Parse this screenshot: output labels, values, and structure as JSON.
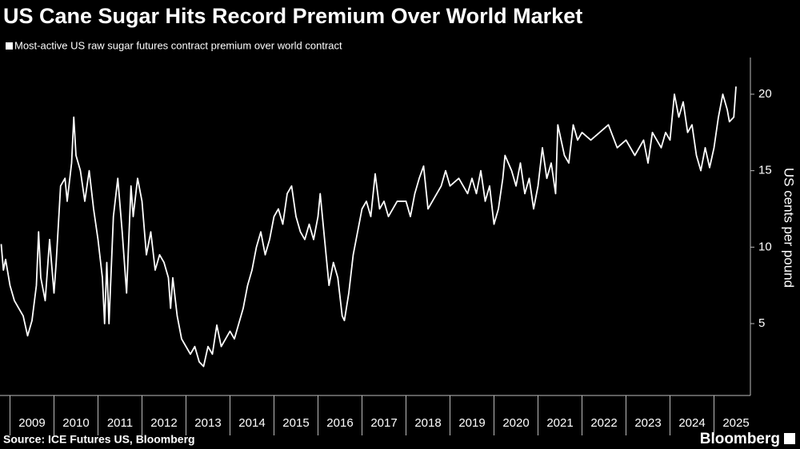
{
  "chart_data": {
    "type": "line",
    "title": "US Cane Sugar Hits Record Premium Over World Market",
    "ylabel": "US cents per pound",
    "source": "Source: ICE Futures US, Bloomberg",
    "brand": "Bloomberg",
    "grid": false,
    "legend": "top-left",
    "xlim": [
      2008.773,
      2025.827
    ],
    "xticks": [
      2009,
      2010,
      2011,
      2012,
      2013,
      2014,
      2015,
      2016,
      2017,
      2018,
      2019,
      2020,
      2021,
      2022,
      2023,
      2024,
      2025
    ],
    "ylim": [
      0.3,
      22.4
    ],
    "yticks": [
      5,
      10,
      15,
      20
    ],
    "x": [
      2008.8,
      2008.85,
      2008.9,
      2009.0,
      2009.1,
      2009.2,
      2009.3,
      2009.4,
      2009.5,
      2009.6,
      2009.65,
      2009.7,
      2009.8,
      2009.9,
      2010.0,
      2010.05,
      2010.15,
      2010.25,
      2010.3,
      2010.4,
      2010.45,
      2010.5,
      2010.6,
      2010.7,
      2010.8,
      2010.9,
      2011.0,
      2011.1,
      2011.15,
      2011.2,
      2011.25,
      2011.35,
      2011.45,
      2011.55,
      2011.65,
      2011.75,
      2011.8,
      2011.9,
      2012.0,
      2012.1,
      2012.2,
      2012.3,
      2012.4,
      2012.5,
      2012.6,
      2012.65,
      2012.7,
      2012.8,
      2012.9,
      2013.0,
      2013.1,
      2013.2,
      2013.3,
      2013.4,
      2013.5,
      2013.6,
      2013.7,
      2013.8,
      2013.9,
      2014.0,
      2014.1,
      2014.2,
      2014.3,
      2014.4,
      2014.5,
      2014.6,
      2014.7,
      2014.8,
      2014.9,
      2015.0,
      2015.1,
      2015.2,
      2015.3,
      2015.4,
      2015.5,
      2015.6,
      2015.7,
      2015.8,
      2015.9,
      2016.0,
      2016.05,
      2016.15,
      2016.25,
      2016.35,
      2016.45,
      2016.55,
      2016.6,
      2016.7,
      2016.8,
      2016.9,
      2017.0,
      2017.1,
      2017.2,
      2017.3,
      2017.4,
      2017.5,
      2017.6,
      2017.8,
      2018.0,
      2018.1,
      2018.2,
      2018.3,
      2018.4,
      2018.5,
      2018.6,
      2018.8,
      2018.9,
      2019.0,
      2019.2,
      2019.4,
      2019.5,
      2019.6,
      2019.7,
      2019.8,
      2019.9,
      2020.0,
      2020.1,
      2020.2,
      2020.25,
      2020.4,
      2020.5,
      2020.6,
      2020.7,
      2020.8,
      2020.9,
      2021.0,
      2021.1,
      2021.2,
      2021.3,
      2021.4,
      2021.45,
      2021.6,
      2021.7,
      2021.8,
      2021.9,
      2022.0,
      2022.2,
      2022.4,
      2022.6,
      2022.8,
      2023.0,
      2023.2,
      2023.4,
      2023.5,
      2023.6,
      2023.8,
      2023.9,
      2024.0,
      2024.1,
      2024.2,
      2024.3,
      2024.4,
      2024.5,
      2024.6,
      2024.7,
      2024.8,
      2024.9,
      2025.0,
      2025.1,
      2025.2,
      2025.3,
      2025.35,
      2025.45,
      2025.5
    ],
    "series": [
      {
        "name": "Most-active US raw sugar futures contract premium over world contract",
        "color": "#ffffff",
        "values": [
          10.2,
          8.5,
          9.2,
          7.5,
          6.5,
          6.0,
          5.5,
          4.2,
          5.2,
          7.5,
          11.0,
          8.0,
          6.5,
          10.5,
          7.0,
          9.0,
          14.0,
          14.5,
          13.0,
          15.5,
          18.5,
          16.0,
          15.0,
          13.0,
          15.0,
          12.5,
          10.5,
          8.0,
          5.0,
          9.0,
          5.0,
          12.0,
          14.5,
          11.0,
          7.0,
          14.0,
          12.0,
          14.5,
          13.0,
          9.5,
          11.0,
          8.5,
          9.5,
          9.0,
          8.0,
          6.0,
          8.0,
          5.5,
          4.0,
          3.5,
          3.0,
          3.5,
          2.5,
          2.2,
          3.5,
          3.0,
          4.9,
          3.5,
          4.0,
          4.5,
          4.0,
          5.0,
          6.0,
          7.5,
          8.5,
          10.0,
          11.0,
          9.5,
          10.5,
          12.0,
          12.5,
          11.5,
          13.5,
          14.0,
          12.0,
          11.0,
          10.5,
          11.5,
          10.5,
          12.0,
          13.5,
          10.5,
          7.5,
          9.0,
          8.0,
          5.5,
          5.2,
          7.0,
          9.5,
          11.0,
          12.5,
          13.0,
          12.0,
          14.8,
          12.5,
          13.0,
          12.0,
          13.0,
          13.0,
          12.0,
          13.5,
          14.5,
          15.3,
          12.5,
          13.0,
          14.0,
          15.0,
          14.0,
          14.5,
          13.5,
          14.5,
          13.5,
          15.0,
          13.0,
          14.0,
          11.5,
          12.5,
          14.5,
          16.0,
          15.0,
          14.0,
          15.5,
          13.5,
          14.5,
          12.5,
          14.0,
          16.5,
          14.5,
          15.5,
          13.5,
          18.0,
          16.0,
          15.5,
          18.0,
          17.0,
          17.5,
          17.0,
          17.5,
          18.0,
          16.5,
          17.0,
          16.0,
          17.0,
          15.5,
          17.5,
          16.5,
          17.5,
          17.0,
          20.0,
          18.5,
          19.5,
          17.5,
          18.0,
          16.0,
          15.0,
          16.5,
          15.2,
          16.5,
          18.5,
          20.0,
          19.0,
          18.2,
          18.5,
          20.5
        ]
      }
    ]
  }
}
